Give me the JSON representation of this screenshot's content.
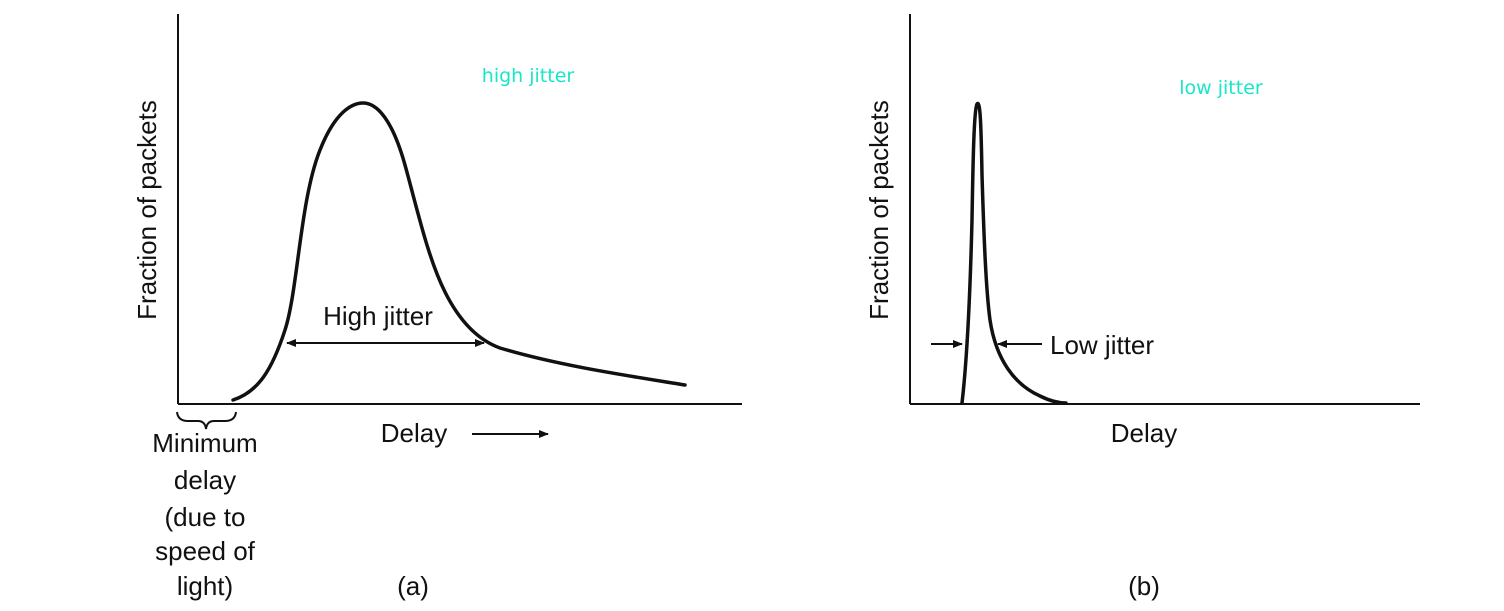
{
  "colors": {
    "ink": "#111111",
    "annotation": "#19e6c8"
  },
  "panel_a": {
    "annotation": "high jitter",
    "y_axis_label": "Fraction of packets",
    "x_axis_label": "Delay",
    "spread_label": "High jitter",
    "min_delay_lines": [
      "Minimum",
      "delay",
      "(due to",
      "speed of",
      "light)"
    ],
    "caption": "(a)"
  },
  "panel_b": {
    "annotation": "low jitter",
    "y_axis_label": "Fraction of packets",
    "x_axis_label": "Delay",
    "spread_label": "Low jitter",
    "caption": "(b)"
  }
}
